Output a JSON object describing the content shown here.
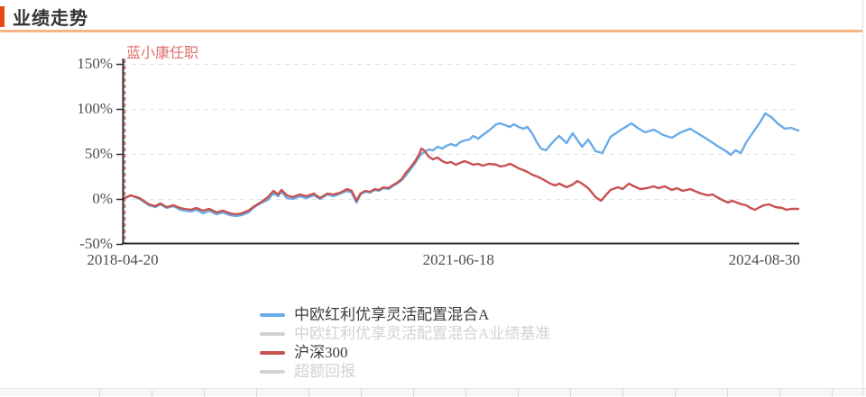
{
  "page": {
    "title": "业绩走势"
  },
  "colors": {
    "accent": "#E84A17",
    "underline": "#F8B584",
    "title_text": "#333333",
    "axis_line": "#2E2E2E",
    "axis_label": "#4D4D4D",
    "grid_line": "#E2E2E2",
    "fund_blue": "#69ABE8",
    "index_red": "#C7514F",
    "marker_red": "#DD6E6A",
    "inactive_gray": "#D2D2D2",
    "legend_text": "#3C3C3C",
    "strip_bg": "#F7F7F7",
    "strip_border": "#E4E4E4",
    "strip_divider": "#DCDCDC"
  },
  "chart": {
    "annotation": "蓝小康任职",
    "y_axis": {
      "ticks": [
        {
          "label": "150%",
          "value": 150
        },
        {
          "label": "100%",
          "value": 100
        },
        {
          "label": "50%",
          "value": 50
        },
        {
          "label": "0%",
          "value": 0
        },
        {
          "label": "-50%",
          "value": -50
        }
      ]
    },
    "x_axis": {
      "labels": [
        {
          "text": "2018-04-20",
          "frac": 0.0,
          "align": "center"
        },
        {
          "text": "2021-06-18",
          "frac": 0.497,
          "align": "center"
        },
        {
          "text": "2024-08-30",
          "frac": 1.0,
          "align": "right"
        }
      ]
    },
    "legend": [
      {
        "label": "中欧红利优享灵活配置混合A",
        "color": "#69ABE8",
        "active": true
      },
      {
        "label": "中欧红利优享灵活配置混合A业绩基准",
        "color": "#D2D2D2",
        "active": false
      },
      {
        "label": "沪深300",
        "color": "#C7514F",
        "active": true
      },
      {
        "label": "超额回报",
        "color": "#D2D2D2",
        "active": false
      }
    ]
  },
  "chart_data": {
    "type": "line",
    "title": "业绩走势",
    "x_range": [
      "2018-04-20",
      "2024-08-30"
    ],
    "x_tick_labels": [
      "2018-04-20",
      "2021-06-18",
      "2024-08-30"
    ],
    "ylim": [
      -50,
      150
    ],
    "y_unit": "%",
    "grid": true,
    "legend_position": "bottom",
    "annotation": {
      "text": "蓝小康任职",
      "x_frac": 0.003
    },
    "series": [
      {
        "name": "中欧红利优享灵活配置混合A",
        "color": "#69ABE8",
        "visible": true,
        "points": [
          [
            0.0,
            0
          ],
          [
            0.012,
            4
          ],
          [
            0.025,
            0
          ],
          [
            0.039,
            -7
          ],
          [
            0.048,
            -9
          ],
          [
            0.056,
            -6
          ],
          [
            0.065,
            -10
          ],
          [
            0.075,
            -8
          ],
          [
            0.085,
            -12
          ],
          [
            0.092,
            -13
          ],
          [
            0.101,
            -14
          ],
          [
            0.109,
            -12
          ],
          [
            0.119,
            -16
          ],
          [
            0.128,
            -13
          ],
          [
            0.139,
            -17
          ],
          [
            0.148,
            -15
          ],
          [
            0.159,
            -18
          ],
          [
            0.168,
            -19
          ],
          [
            0.176,
            -18
          ],
          [
            0.186,
            -15
          ],
          [
            0.195,
            -9
          ],
          [
            0.206,
            -4
          ],
          [
            0.215,
            -1
          ],
          [
            0.223,
            6
          ],
          [
            0.23,
            3
          ],
          [
            0.235,
            8
          ],
          [
            0.243,
            1
          ],
          [
            0.252,
            0
          ],
          [
            0.262,
            3
          ],
          [
            0.272,
            1
          ],
          [
            0.283,
            4
          ],
          [
            0.292,
            0
          ],
          [
            0.303,
            5
          ],
          [
            0.312,
            3
          ],
          [
            0.322,
            6
          ],
          [
            0.332,
            9
          ],
          [
            0.339,
            7
          ],
          [
            0.346,
            -4
          ],
          [
            0.352,
            5
          ],
          [
            0.359,
            8
          ],
          [
            0.366,
            7
          ],
          [
            0.373,
            10
          ],
          [
            0.379,
            9
          ],
          [
            0.386,
            12
          ],
          [
            0.393,
            11
          ],
          [
            0.399,
            14
          ],
          [
            0.406,
            17
          ],
          [
            0.413,
            21
          ],
          [
            0.419,
            26
          ],
          [
            0.426,
            33
          ],
          [
            0.433,
            40
          ],
          [
            0.439,
            47
          ],
          [
            0.442,
            50
          ],
          [
            0.446,
            52
          ],
          [
            0.453,
            55
          ],
          [
            0.459,
            54
          ],
          [
            0.466,
            58
          ],
          [
            0.473,
            56
          ],
          [
            0.479,
            59
          ],
          [
            0.486,
            61
          ],
          [
            0.493,
            59
          ],
          [
            0.499,
            63
          ],
          [
            0.506,
            65
          ],
          [
            0.513,
            66
          ],
          [
            0.519,
            70
          ],
          [
            0.526,
            67
          ],
          [
            0.533,
            71
          ],
          [
            0.542,
            76
          ],
          [
            0.553,
            83
          ],
          [
            0.559,
            84
          ],
          [
            0.566,
            82
          ],
          [
            0.573,
            80
          ],
          [
            0.579,
            83
          ],
          [
            0.586,
            80
          ],
          [
            0.593,
            78
          ],
          [
            0.599,
            80
          ],
          [
            0.606,
            73
          ],
          [
            0.613,
            63
          ],
          [
            0.619,
            56
          ],
          [
            0.626,
            54
          ],
          [
            0.633,
            60
          ],
          [
            0.64,
            66
          ],
          [
            0.646,
            70
          ],
          [
            0.657,
            62
          ],
          [
            0.666,
            73
          ],
          [
            0.68,
            58
          ],
          [
            0.689,
            66
          ],
          [
            0.7,
            53
          ],
          [
            0.71,
            51
          ],
          [
            0.722,
            69
          ],
          [
            0.74,
            78
          ],
          [
            0.753,
            84
          ],
          [
            0.762,
            79
          ],
          [
            0.773,
            74
          ],
          [
            0.786,
            77
          ],
          [
            0.8,
            71
          ],
          [
            0.813,
            68
          ],
          [
            0.826,
            74
          ],
          [
            0.84,
            78
          ],
          [
            0.853,
            72
          ],
          [
            0.866,
            66
          ],
          [
            0.88,
            59
          ],
          [
            0.893,
            53
          ],
          [
            0.9,
            49
          ],
          [
            0.907,
            54
          ],
          [
            0.915,
            51
          ],
          [
            0.923,
            63
          ],
          [
            0.933,
            74
          ],
          [
            0.944,
            86
          ],
          [
            0.951,
            95
          ],
          [
            0.96,
            91
          ],
          [
            0.969,
            84
          ],
          [
            0.98,
            78
          ],
          [
            0.989,
            79
          ],
          [
            1.0,
            76
          ]
        ]
      },
      {
        "name": "沪深300",
        "color": "#C7514F",
        "visible": true,
        "points": [
          [
            0.0,
            0
          ],
          [
            0.012,
            4
          ],
          [
            0.025,
            1
          ],
          [
            0.039,
            -6
          ],
          [
            0.048,
            -8
          ],
          [
            0.056,
            -5
          ],
          [
            0.065,
            -9
          ],
          [
            0.075,
            -7
          ],
          [
            0.085,
            -10
          ],
          [
            0.092,
            -11
          ],
          [
            0.101,
            -12
          ],
          [
            0.109,
            -10
          ],
          [
            0.119,
            -13
          ],
          [
            0.128,
            -11
          ],
          [
            0.139,
            -15
          ],
          [
            0.148,
            -13
          ],
          [
            0.159,
            -16
          ],
          [
            0.168,
            -17
          ],
          [
            0.176,
            -16
          ],
          [
            0.186,
            -13
          ],
          [
            0.195,
            -8
          ],
          [
            0.206,
            -3
          ],
          [
            0.215,
            2
          ],
          [
            0.223,
            9
          ],
          [
            0.23,
            5
          ],
          [
            0.235,
            10
          ],
          [
            0.243,
            4
          ],
          [
            0.252,
            2
          ],
          [
            0.262,
            5
          ],
          [
            0.272,
            3
          ],
          [
            0.283,
            6
          ],
          [
            0.292,
            1
          ],
          [
            0.303,
            6
          ],
          [
            0.312,
            5
          ],
          [
            0.322,
            7
          ],
          [
            0.332,
            11
          ],
          [
            0.339,
            9
          ],
          [
            0.346,
            -2
          ],
          [
            0.352,
            6
          ],
          [
            0.359,
            9
          ],
          [
            0.366,
            8
          ],
          [
            0.373,
            11
          ],
          [
            0.379,
            10
          ],
          [
            0.386,
            13
          ],
          [
            0.393,
            12
          ],
          [
            0.399,
            15
          ],
          [
            0.406,
            18
          ],
          [
            0.413,
            22
          ],
          [
            0.419,
            29
          ],
          [
            0.426,
            35
          ],
          [
            0.433,
            42
          ],
          [
            0.439,
            50
          ],
          [
            0.442,
            56
          ],
          [
            0.446,
            54
          ],
          [
            0.453,
            47
          ],
          [
            0.459,
            44
          ],
          [
            0.466,
            46
          ],
          [
            0.473,
            42
          ],
          [
            0.479,
            40
          ],
          [
            0.486,
            41
          ],
          [
            0.493,
            38
          ],
          [
            0.499,
            40
          ],
          [
            0.506,
            42
          ],
          [
            0.513,
            40
          ],
          [
            0.519,
            38
          ],
          [
            0.526,
            39
          ],
          [
            0.533,
            37
          ],
          [
            0.542,
            39
          ],
          [
            0.553,
            38
          ],
          [
            0.559,
            36
          ],
          [
            0.566,
            37
          ],
          [
            0.573,
            39
          ],
          [
            0.579,
            37
          ],
          [
            0.586,
            34
          ],
          [
            0.593,
            32
          ],
          [
            0.599,
            30
          ],
          [
            0.606,
            27
          ],
          [
            0.613,
            25
          ],
          [
            0.619,
            23
          ],
          [
            0.626,
            20
          ],
          [
            0.633,
            17
          ],
          [
            0.64,
            15
          ],
          [
            0.646,
            17
          ],
          [
            0.657,
            13
          ],
          [
            0.666,
            16
          ],
          [
            0.673,
            20
          ],
          [
            0.68,
            17
          ],
          [
            0.689,
            12
          ],
          [
            0.7,
            2
          ],
          [
            0.708,
            -2
          ],
          [
            0.716,
            5
          ],
          [
            0.722,
            10
          ],
          [
            0.733,
            13
          ],
          [
            0.74,
            11
          ],
          [
            0.749,
            17
          ],
          [
            0.757,
            14
          ],
          [
            0.766,
            11
          ],
          [
            0.776,
            12
          ],
          [
            0.786,
            14
          ],
          [
            0.793,
            12
          ],
          [
            0.802,
            14
          ],
          [
            0.813,
            10
          ],
          [
            0.82,
            12
          ],
          [
            0.829,
            9
          ],
          [
            0.84,
            11
          ],
          [
            0.846,
            9
          ],
          [
            0.856,
            6
          ],
          [
            0.866,
            4
          ],
          [
            0.873,
            5
          ],
          [
            0.882,
            1
          ],
          [
            0.89,
            -2
          ],
          [
            0.896,
            -4
          ],
          [
            0.902,
            -2
          ],
          [
            0.909,
            -4
          ],
          [
            0.916,
            -6
          ],
          [
            0.923,
            -7
          ],
          [
            0.929,
            -10
          ],
          [
            0.936,
            -12
          ],
          [
            0.943,
            -9
          ],
          [
            0.949,
            -7
          ],
          [
            0.957,
            -6
          ],
          [
            0.966,
            -9
          ],
          [
            0.976,
            -10
          ],
          [
            0.982,
            -12
          ],
          [
            0.989,
            -11
          ],
          [
            1.0,
            -11
          ]
        ]
      },
      {
        "name": "中欧红利优享灵活配置混合A业绩基准",
        "color": "#D2D2D2",
        "visible": false,
        "points": []
      },
      {
        "name": "超额回报",
        "color": "#D2D2D2",
        "visible": false,
        "points": []
      }
    ]
  }
}
